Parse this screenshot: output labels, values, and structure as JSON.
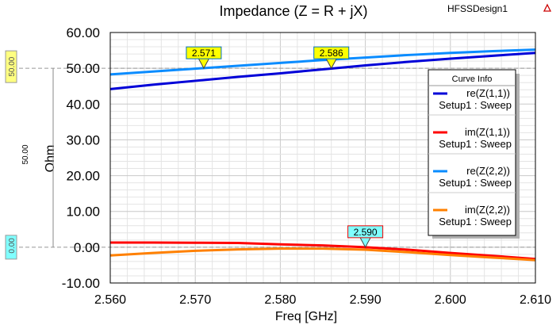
{
  "design_name": "HFSSDesign1",
  "chart_data": {
    "type": "line",
    "title": "Impedance (Z = R + jX)",
    "xlabel": "Freq [GHz]",
    "ylabel": "Ohm",
    "xlim": [
      2.56,
      2.61
    ],
    "ylim": [
      -10,
      60
    ],
    "xticks": [
      "2.560",
      "2.570",
      "2.580",
      "2.590",
      "2.600",
      "2.610"
    ],
    "yticks": [
      "-10.00",
      "0.00",
      "10.00",
      "20.00",
      "30.00",
      "40.00",
      "50.00",
      "60.00"
    ],
    "grid": true,
    "legend": {
      "title": "Curve Info",
      "placement": "right"
    },
    "x": [
      2.56,
      2.565,
      2.57,
      2.575,
      2.58,
      2.585,
      2.59,
      2.595,
      2.6,
      2.605,
      2.61
    ],
    "series": [
      {
        "name": "re(Z(1,1))",
        "sub": "Setup1 : Sweep",
        "color": "#0000d8",
        "values": [
          44.2,
          45.4,
          46.5,
          47.6,
          48.6,
          49.7,
          50.8,
          51.8,
          52.7,
          53.5,
          54.3
        ]
      },
      {
        "name": "im(Z(1,1))",
        "sub": "Setup1 : Sweep",
        "color": "#ff0000",
        "values": [
          1.3,
          1.3,
          1.25,
          1.2,
          0.8,
          0.5,
          0.0,
          -0.7,
          -1.6,
          -2.4,
          -3.3
        ]
      },
      {
        "name": "re(Z(2,2))",
        "sub": "Setup1 : Sweep",
        "color": "#0a8cff",
        "values": [
          48.3,
          49.1,
          49.9,
          50.7,
          51.5,
          52.3,
          53.0,
          53.7,
          54.3,
          54.8,
          55.2
        ]
      },
      {
        "name": "im(Z(2,2))",
        "sub": "Setup1 : Sweep",
        "color": "#ff8000",
        "values": [
          -2.3,
          -1.6,
          -1.0,
          -0.6,
          -0.4,
          -0.4,
          -0.7,
          -1.4,
          -2.2,
          -2.9,
          -3.6
        ]
      }
    ],
    "markers": [
      {
        "label": "2.571",
        "x": 2.571,
        "y": 50.0,
        "fill": "#ffff00"
      },
      {
        "label": "2.586",
        "x": 2.586,
        "y": 50.0,
        "fill": "#ffff00"
      },
      {
        "label": "2.590",
        "x": 2.59,
        "y": 0.0,
        "fill": "#80ffff"
      }
    ],
    "reference_lines": [
      {
        "label": "50.00",
        "y": 50,
        "fill": "#ffff80"
      },
      {
        "label": "0.00",
        "y": 0,
        "fill": "#80ffff"
      }
    ],
    "delta_label": "50.00"
  }
}
